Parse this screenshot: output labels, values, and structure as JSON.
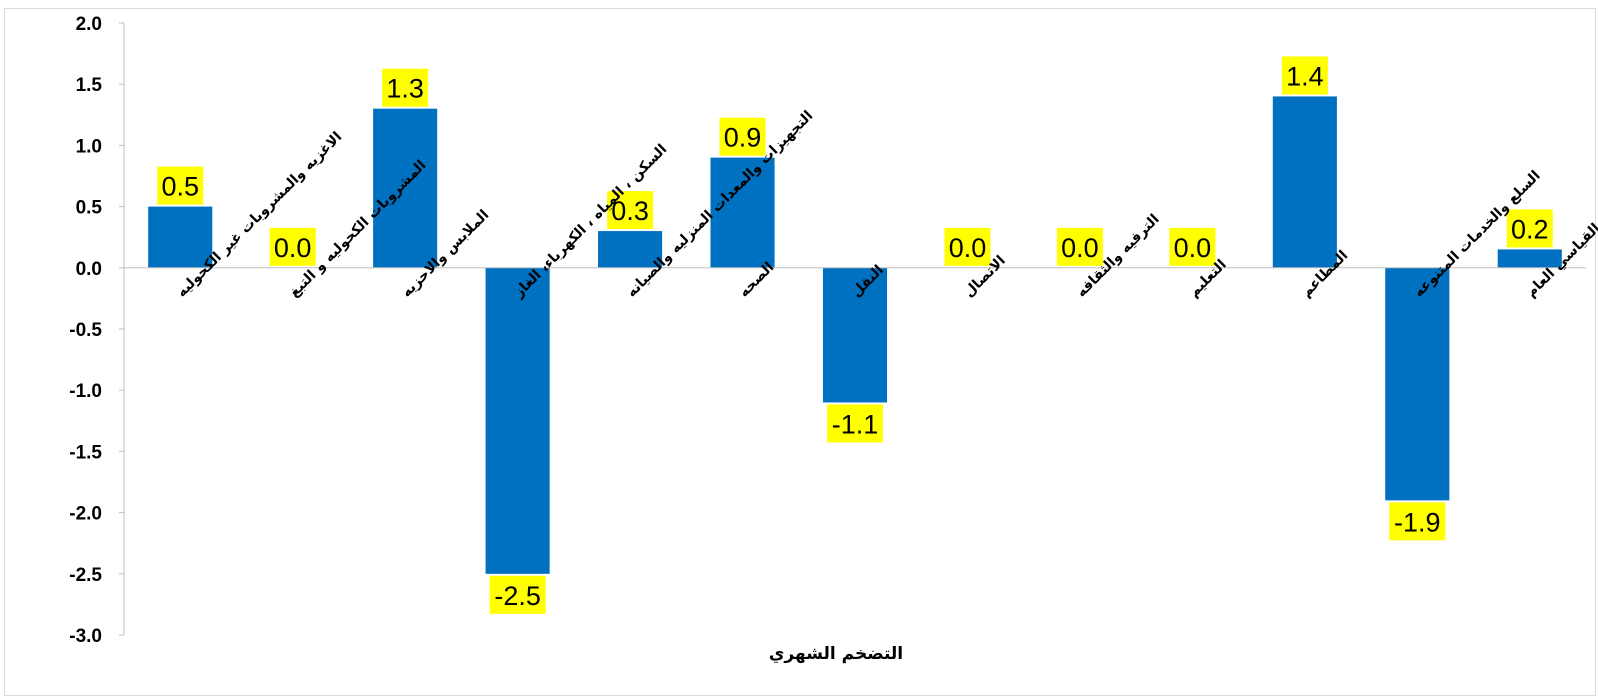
{
  "chart_data": {
    "type": "bar",
    "xlabel": "التضخم الشهري",
    "ylabel": "",
    "ylim": [
      -3.0,
      2.0
    ],
    "yticks": [
      "2.0",
      "1.5",
      "1.0",
      "0.5",
      "0.0",
      "-0.5",
      "-1.0",
      "-1.5",
      "-2.0",
      "-2.5",
      "-3.0"
    ],
    "grid": false,
    "legend": "none",
    "bar_color": "#0070C0",
    "label_bg_color": "#FFFF00",
    "categories": [
      "الاغزيه والمشروبات غير الكحوليه",
      "المشروبات الكحوليه و التبغ",
      "الملابس والاحزيه",
      "السكن ، المياه ، الكهرباء، الغاز",
      "التجهيزات والمعدات المنزليه والصيانه",
      "الصحه",
      "النقل",
      "الاتصال",
      "الترفيه والثقافه",
      "التعليم",
      "المطاعم",
      "السلع والخدمات المتنوعه",
      "الرقم القياسي العام"
    ],
    "values": [
      0.5,
      0.0,
      1.3,
      -2.5,
      0.3,
      0.9,
      -1.1,
      0.0,
      0.0,
      0.0,
      1.4,
      -1.9,
      0.15
    ],
    "value_labels": [
      "0.5",
      "0.0",
      "1.3",
      "-2.5",
      "0.3",
      "0.9",
      "-1.1",
      "0.0",
      "0.0",
      "0.0",
      "1.4",
      "-1.9",
      "0.2"
    ]
  }
}
